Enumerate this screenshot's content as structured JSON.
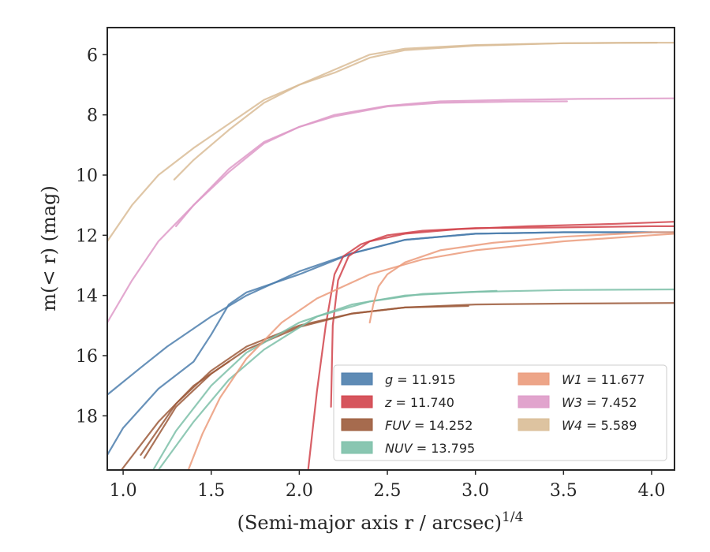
{
  "chart_data": {
    "type": "line",
    "xlabel": "(Semi-major axis r / arcsec)",
    "xlabel_power": "1/4",
    "ylabel": "m(< r) (mag)",
    "xlim": [
      0.91,
      4.13
    ],
    "ylim": [
      19.8,
      5.1
    ],
    "x_ticks": [
      1.0,
      1.5,
      2.0,
      2.5,
      3.0,
      3.5,
      4.0
    ],
    "x_tick_labels": [
      "1.0",
      "1.5",
      "2.0",
      "2.5",
      "3.0",
      "3.5",
      "4.0"
    ],
    "y_ticks": [
      6,
      8,
      10,
      12,
      14,
      16,
      18
    ],
    "y_tick_labels": [
      "6",
      "8",
      "10",
      "12",
      "14",
      "16",
      "18"
    ],
    "grid": false,
    "legend_placement": "lower-right",
    "series": [
      {
        "name": "g = 11.915",
        "sym": "g",
        "value": "11.915",
        "color": "#4c7ead",
        "curves": [
          {
            "x": [
              0.91,
              1.1,
              1.25,
              1.4,
              1.5,
              1.7,
              2.0,
              2.3,
              2.6,
              3.0,
              3.5,
              4.0
            ],
            "y": [
              17.3,
              16.4,
              15.7,
              15.1,
              14.7,
              14.0,
              13.2,
              12.6,
              12.15,
              11.95,
              11.9,
              11.9
            ]
          },
          {
            "x": [
              0.91,
              1.0,
              1.2,
              1.4,
              1.5,
              1.6,
              1.7,
              2.0,
              2.3,
              2.6,
              3.0,
              3.5,
              4.13
            ],
            "y": [
              19.3,
              18.4,
              17.1,
              16.2,
              15.3,
              14.3,
              13.9,
              13.3,
              12.6,
              12.15,
              11.95,
              11.9,
              11.9
            ]
          }
        ]
      },
      {
        "name": "z = 11.740",
        "sym": "z",
        "value": "11.740",
        "color": "#d1434b",
        "curves": [
          {
            "x": [
              2.05,
              2.1,
              2.15,
              2.2,
              2.25,
              2.35,
              2.5,
              2.7,
              3.0,
              3.5,
              4.0,
              4.13
            ],
            "y": [
              19.8,
              17.2,
              15.0,
              13.3,
              12.7,
              12.3,
              12.0,
              11.85,
              11.76,
              11.74,
              11.7,
              11.7
            ]
          },
          {
            "x": [
              2.18,
              2.19,
              2.22,
              2.28,
              2.4,
              2.6,
              2.9,
              3.3,
              3.8,
              4.13
            ],
            "y": [
              17.7,
              15.0,
              13.5,
              12.7,
              12.2,
              11.95,
              11.8,
              11.7,
              11.62,
              11.55
            ]
          }
        ]
      },
      {
        "name": "FUV = 14.252",
        "sym": "FUV",
        "value": "14.252",
        "color": "#9c5b3b",
        "curves": [
          {
            "x": [
              1.1,
              1.3,
              1.5,
              1.7,
              2.0,
              2.3,
              2.6,
              2.96
            ],
            "y": [
              19.3,
              17.6,
              16.5,
              15.7,
              15.0,
              14.6,
              14.4,
              14.35
            ]
          },
          {
            "x": [
              1.12,
              1.3,
              1.5,
              1.7,
              2.0,
              2.3,
              2.6,
              3.0,
              3.5,
              4.13
            ],
            "y": [
              19.4,
              17.7,
              16.6,
              15.8,
              15.05,
              14.6,
              14.4,
              14.3,
              14.27,
              14.25
            ]
          },
          {
            "x": [
              0.99,
              1.2,
              1.4,
              1.6
            ],
            "y": [
              19.8,
              18.2,
              17.0,
              16.2
            ]
          }
        ]
      },
      {
        "name": "NUV = 13.795",
        "sym": "NUV",
        "value": "13.795",
        "color": "#7cc0a8",
        "curves": [
          {
            "x": [
              1.17,
              1.3,
              1.5,
              1.7,
              2.0,
              2.3,
              2.6,
              3.0,
              3.5,
              4.13
            ],
            "y": [
              19.8,
              18.5,
              17.0,
              15.9,
              14.9,
              14.3,
              14.0,
              13.88,
              13.82,
              13.8
            ]
          },
          {
            "x": [
              1.2,
              1.4,
              1.6,
              1.8,
              2.1,
              2.4,
              2.7,
              3.12
            ],
            "y": [
              19.8,
              18.2,
              16.8,
              15.8,
              14.7,
              14.2,
              13.95,
              13.85
            ]
          }
        ]
      },
      {
        "name": "W1 = 11.677",
        "sym": "W1",
        "value": "11.677",
        "color": "#eb9b7b",
        "curves": [
          {
            "x": [
              1.37,
              1.45,
              1.55,
              1.7,
              1.9,
              2.1,
              2.4,
              2.7,
              3.0,
              3.5,
              4.0,
              4.13
            ],
            "y": [
              19.8,
              18.6,
              17.4,
              16.1,
              14.9,
              14.1,
              13.3,
              12.8,
              12.5,
              12.2,
              12.0,
              11.95
            ]
          },
          {
            "x": [
              2.4,
              2.42,
              2.45,
              2.5,
              2.6,
              2.8,
              3.1,
              3.5,
              4.0,
              4.13
            ],
            "y": [
              14.9,
              14.3,
              13.7,
              13.3,
              12.9,
              12.5,
              12.25,
              12.05,
              11.9,
              11.9
            ]
          }
        ]
      },
      {
        "name": "W3 = 7.452",
        "sym": "W3",
        "value": "7.452",
        "color": "#de9ac8",
        "curves": [
          {
            "x": [
              0.91,
              1.05,
              1.2,
              1.4,
              1.6,
              1.8,
              2.0,
              2.2,
              2.5,
              2.8,
              3.2,
              3.6,
              4.13
            ],
            "y": [
              14.9,
              13.5,
              12.2,
              11.0,
              9.8,
              8.9,
              8.4,
              8.0,
              7.7,
              7.55,
              7.5,
              7.47,
              7.45
            ]
          },
          {
            "x": [
              1.3,
              1.4,
              1.6,
              1.8,
              2.0,
              2.2,
              2.5,
              2.8,
              3.2,
              3.52
            ],
            "y": [
              11.7,
              11.0,
              9.9,
              8.95,
              8.4,
              8.05,
              7.72,
              7.6,
              7.56,
              7.55
            ]
          }
        ]
      },
      {
        "name": "W4 = 5.589",
        "sym": "W4",
        "value": "5.589",
        "color": "#d9bc96",
        "curves": [
          {
            "x": [
              0.91,
              1.05,
              1.2,
              1.4,
              1.6,
              1.8,
              2.0,
              2.2,
              2.4,
              2.6,
              3.0,
              3.5,
              4.0,
              4.13
            ],
            "y": [
              12.2,
              11.0,
              10.0,
              9.1,
              8.3,
              7.5,
              7.0,
              6.5,
              6.0,
              5.8,
              5.68,
              5.62,
              5.6,
              5.6
            ]
          },
          {
            "x": [
              1.29,
              1.4,
              1.6,
              1.8,
              2.0,
              2.2,
              2.4,
              2.6,
              3.0,
              3.5,
              4.03
            ],
            "y": [
              10.15,
              9.5,
              8.5,
              7.6,
              7.0,
              6.6,
              6.1,
              5.85,
              5.7,
              5.62,
              5.6
            ]
          }
        ]
      }
    ]
  }
}
